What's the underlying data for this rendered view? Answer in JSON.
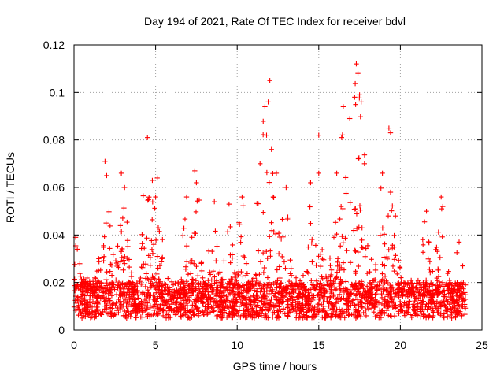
{
  "chart_data": {
    "type": "scatter",
    "title": "Day 194 of 2021, Rate Of TEC Index for receiver bdvl",
    "xlabel": "GPS time / hours",
    "ylabel": "ROTI / TECUs",
    "xlim": [
      0,
      25
    ],
    "ylim": [
      0,
      0.12
    ],
    "x_ticks": [
      0,
      5,
      10,
      15,
      20,
      25
    ],
    "y_ticks": [
      0,
      0.02,
      0.04,
      0.06,
      0.08,
      0.1,
      0.12
    ],
    "x_tick_labels": [
      "0",
      "5",
      "10",
      "15",
      "20",
      "25"
    ],
    "y_tick_labels": [
      "0",
      "0.02",
      "0.04",
      "0.06",
      "0.08",
      "0.1",
      "0.12"
    ],
    "grid": true,
    "marker": "plus",
    "series": [
      {
        "name": "ROTI",
        "color": "#ff0000",
        "x_range": [
          0,
          24
        ],
        "baseline_band": [
          0.005,
          0.02
        ],
        "notable_points": [
          {
            "x": 0.1,
            "y": 0.039
          },
          {
            "x": 0.2,
            "y": 0.034
          },
          {
            "x": 1.9,
            "y": 0.071
          },
          {
            "x": 2.0,
            "y": 0.065
          },
          {
            "x": 2.9,
            "y": 0.066
          },
          {
            "x": 3.1,
            "y": 0.06
          },
          {
            "x": 4.5,
            "y": 0.081
          },
          {
            "x": 4.8,
            "y": 0.063
          },
          {
            "x": 5.1,
            "y": 0.064
          },
          {
            "x": 5.0,
            "y": 0.056
          },
          {
            "x": 6.9,
            "y": 0.056
          },
          {
            "x": 7.4,
            "y": 0.067
          },
          {
            "x": 7.5,
            "y": 0.062
          },
          {
            "x": 8.6,
            "y": 0.054
          },
          {
            "x": 9.5,
            "y": 0.053
          },
          {
            "x": 10.3,
            "y": 0.056
          },
          {
            "x": 11.4,
            "y": 0.07
          },
          {
            "x": 11.7,
            "y": 0.094
          },
          {
            "x": 11.8,
            "y": 0.082
          },
          {
            "x": 11.9,
            "y": 0.096
          },
          {
            "x": 12.0,
            "y": 0.105
          },
          {
            "x": 12.1,
            "y": 0.076
          },
          {
            "x": 12.4,
            "y": 0.066
          },
          {
            "x": 13.0,
            "y": 0.06
          },
          {
            "x": 14.5,
            "y": 0.062
          },
          {
            "x": 15.0,
            "y": 0.082
          },
          {
            "x": 15.0,
            "y": 0.066
          },
          {
            "x": 16.1,
            "y": 0.066
          },
          {
            "x": 16.4,
            "y": 0.081
          },
          {
            "x": 16.5,
            "y": 0.094
          },
          {
            "x": 16.9,
            "y": 0.089
          },
          {
            "x": 17.2,
            "y": 0.098
          },
          {
            "x": 17.3,
            "y": 0.112
          },
          {
            "x": 17.4,
            "y": 0.108
          },
          {
            "x": 17.5,
            "y": 0.099
          },
          {
            "x": 17.6,
            "y": 0.096
          },
          {
            "x": 17.8,
            "y": 0.07
          },
          {
            "x": 18.9,
            "y": 0.066
          },
          {
            "x": 19.3,
            "y": 0.085
          },
          {
            "x": 19.4,
            "y": 0.083
          },
          {
            "x": 19.4,
            "y": 0.058
          },
          {
            "x": 19.7,
            "y": 0.048
          },
          {
            "x": 21.6,
            "y": 0.05
          },
          {
            "x": 22.5,
            "y": 0.056
          },
          {
            "x": 22.6,
            "y": 0.052
          },
          {
            "x": 23.6,
            "y": 0.037
          }
        ]
      }
    ]
  }
}
